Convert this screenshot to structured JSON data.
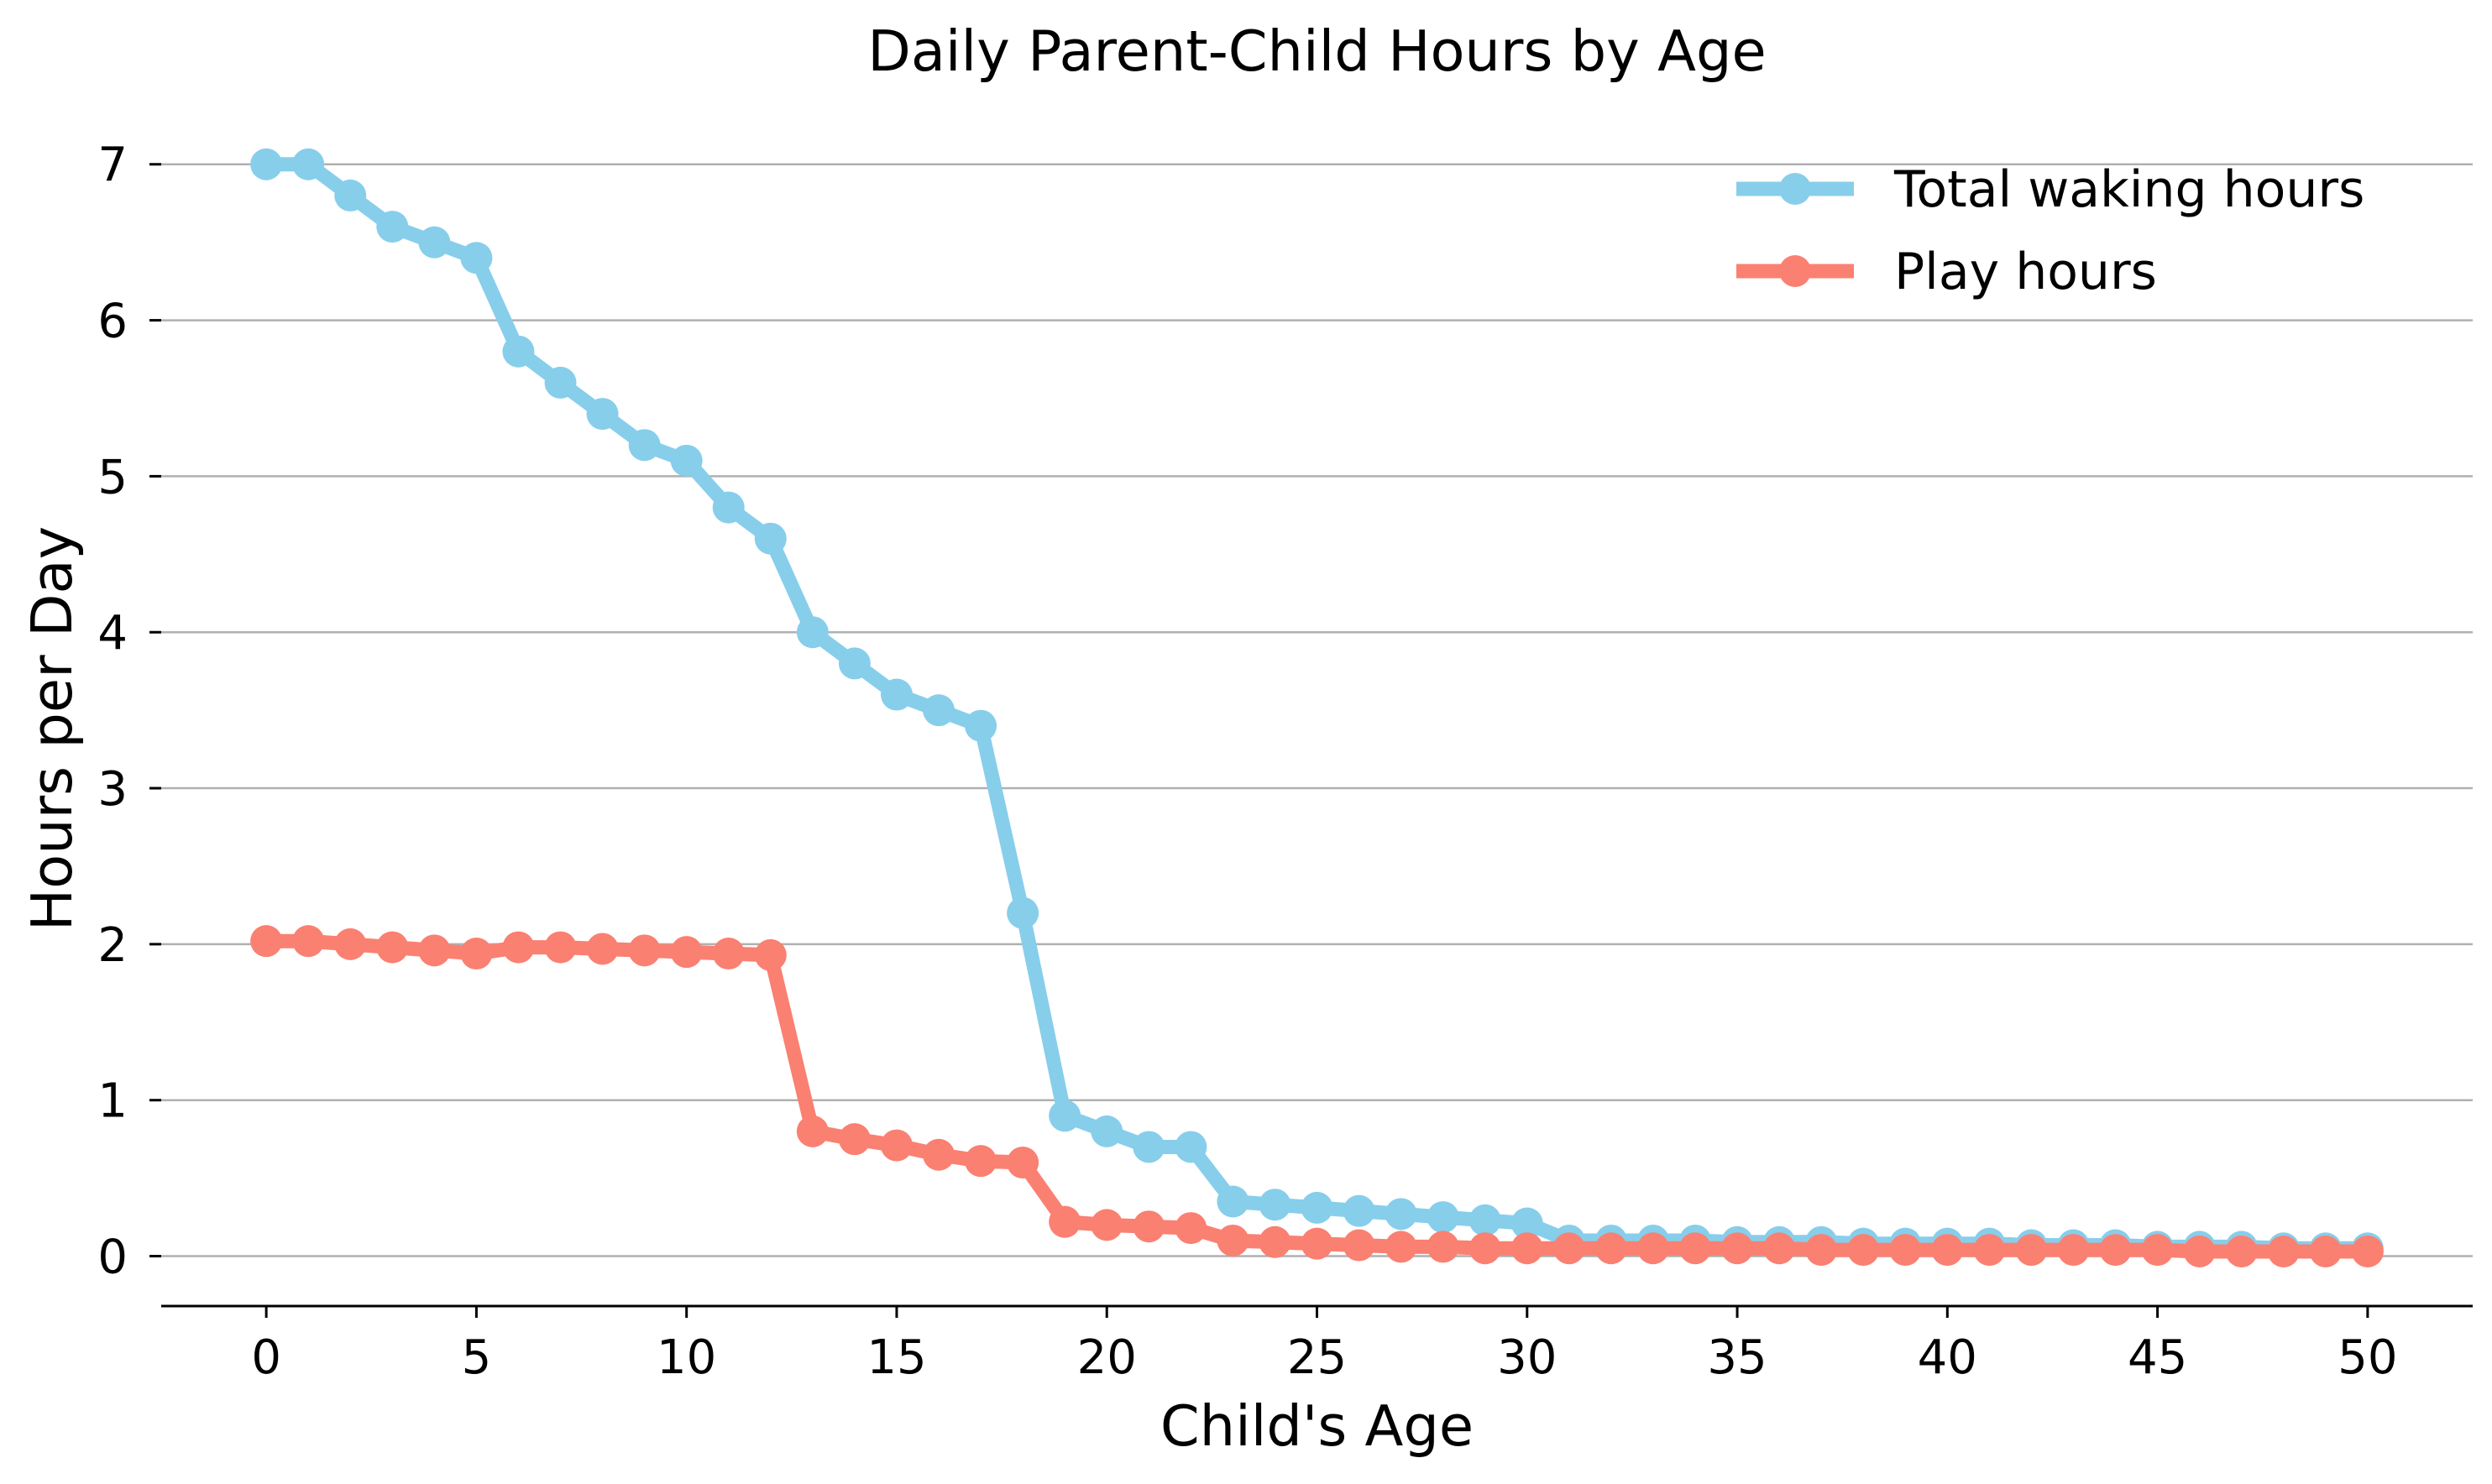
{
  "chart_data": {
    "type": "line",
    "title": "Daily Parent-Child Hours by Age",
    "xlabel": "Child's Age",
    "ylabel": "Hours per Day",
    "xlim": [
      -2.5,
      52.5
    ],
    "ylim": [
      -0.32,
      7.3
    ],
    "xticks": [
      0,
      5,
      10,
      15,
      20,
      25,
      30,
      35,
      40,
      45,
      50
    ],
    "yticks": [
      0,
      1,
      2,
      3,
      4,
      5,
      6,
      7
    ],
    "grid": "horizontal",
    "legend_position": "top-right",
    "x": [
      0,
      1,
      2,
      3,
      4,
      5,
      6,
      7,
      8,
      9,
      10,
      11,
      12,
      13,
      14,
      15,
      16,
      17,
      18,
      19,
      20,
      21,
      22,
      23,
      24,
      25,
      26,
      27,
      28,
      29,
      30,
      31,
      32,
      33,
      34,
      35,
      36,
      37,
      38,
      39,
      40,
      41,
      42,
      43,
      44,
      45,
      46,
      47,
      48,
      49,
      50
    ],
    "series": [
      {
        "name": "Total waking hours",
        "color": "#87CEEB",
        "values": [
          7.0,
          7.0,
          6.8,
          6.6,
          6.5,
          6.4,
          5.8,
          5.6,
          5.4,
          5.2,
          5.1,
          4.8,
          4.6,
          4.0,
          3.8,
          3.6,
          3.5,
          3.4,
          2.2,
          0.9,
          0.8,
          0.7,
          0.7,
          0.35,
          0.33,
          0.31,
          0.29,
          0.27,
          0.25,
          0.23,
          0.21,
          0.1,
          0.1,
          0.1,
          0.1,
          0.09,
          0.09,
          0.09,
          0.08,
          0.08,
          0.08,
          0.08,
          0.07,
          0.07,
          0.07,
          0.06,
          0.06,
          0.06,
          0.05,
          0.05,
          0.05
        ]
      },
      {
        "name": "Play hours",
        "color": "#FA8072",
        "values": [
          2.02,
          2.02,
          2.0,
          1.98,
          1.96,
          1.94,
          1.98,
          1.98,
          1.97,
          1.96,
          1.95,
          1.94,
          1.93,
          0.8,
          0.75,
          0.71,
          0.65,
          0.61,
          0.6,
          0.22,
          0.2,
          0.19,
          0.18,
          0.1,
          0.09,
          0.08,
          0.07,
          0.06,
          0.06,
          0.05,
          0.05,
          0.05,
          0.05,
          0.05,
          0.05,
          0.05,
          0.05,
          0.04,
          0.04,
          0.04,
          0.04,
          0.04,
          0.04,
          0.04,
          0.04,
          0.04,
          0.03,
          0.03,
          0.03,
          0.03,
          0.03
        ]
      }
    ]
  }
}
